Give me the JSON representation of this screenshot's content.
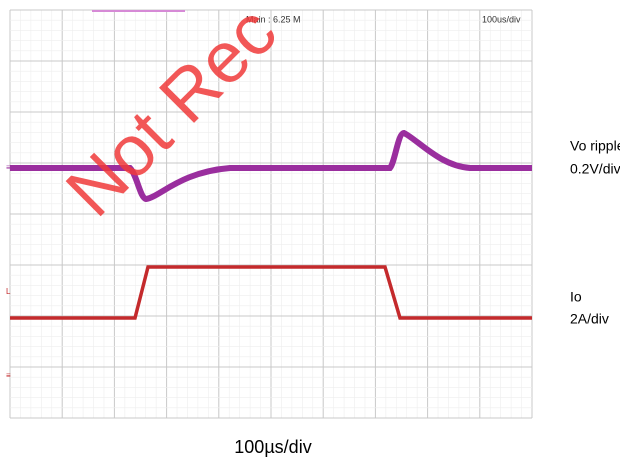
{
  "screen": {
    "timebase_header": "Main : 6.25 M",
    "timebase": "100us/div"
  },
  "channels": [
    {
      "name": "Vo ripple",
      "scale": "0.2V/div"
    },
    {
      "name": "Io",
      "scale": "2A/div"
    }
  ],
  "x_label": "100µs/div",
  "watermark": "Not Rec"
}
